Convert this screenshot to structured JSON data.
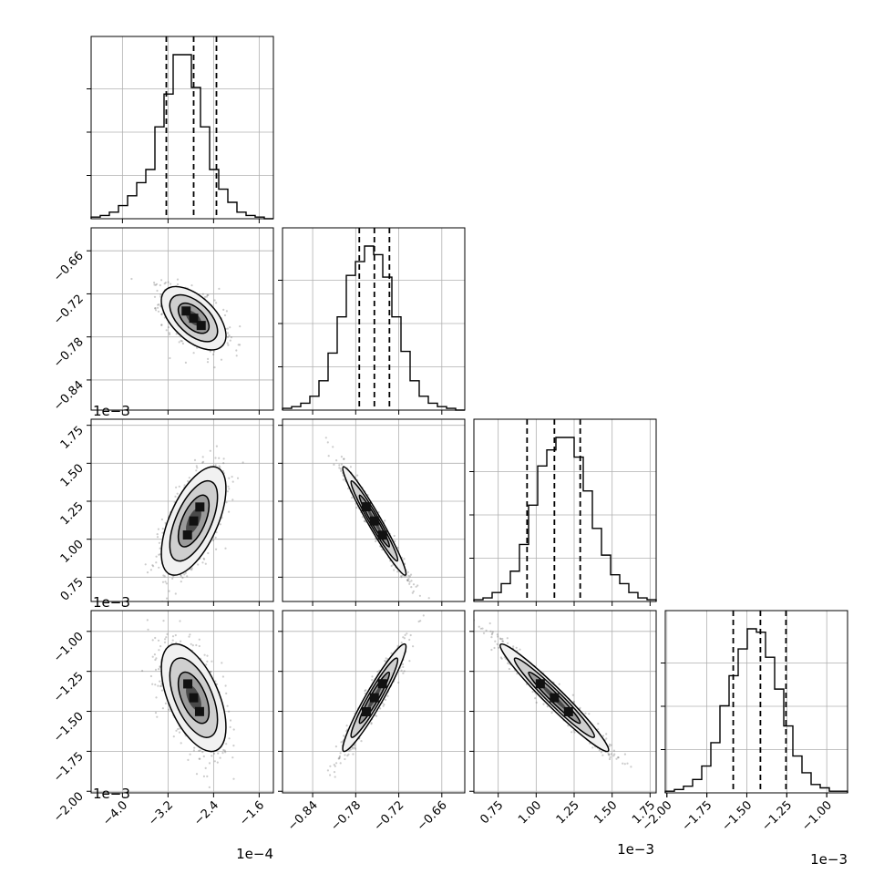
{
  "chart_data": {
    "type": "corner",
    "n_params": 4,
    "params": [
      {
        "ticks": [
          -4.0,
          -3.2,
          -2.4,
          -1.6
        ],
        "tick_labels": [
          "−4.0",
          "−3.2",
          "−2.4",
          "−1.6"
        ],
        "offset_label": "1e−4",
        "quantiles": [
          -3.23,
          -2.75,
          -2.35
        ],
        "range": [
          -4.55,
          -1.35
        ],
        "hist": [
          1,
          2,
          4,
          8,
          14,
          22,
          30,
          56,
          76,
          100,
          100,
          80,
          56,
          30,
          18,
          10,
          4,
          2,
          1,
          0
        ]
      },
      {
        "ticks": [
          -0.84,
          -0.78,
          -0.72,
          -0.66
        ],
        "tick_labels": [
          "−0.84",
          "−0.78",
          "−0.72",
          "−0.66"
        ],
        "offset_label": "1e−3",
        "quantiles": [
          -0.775,
          -0.754,
          -0.733
        ],
        "range": [
          -0.882,
          -0.628
        ],
        "hist": [
          1,
          2,
          4,
          8,
          17,
          33,
          54,
          78,
          86,
          95,
          90,
          77,
          54,
          34,
          17,
          8,
          4,
          2,
          1,
          0
        ]
      },
      {
        "ticks": [
          0.75,
          1.0,
          1.25,
          1.5,
          1.75
        ],
        "tick_labels": [
          "0.75",
          "1.00",
          "1.25",
          "1.50",
          "1.75"
        ],
        "offset_label": "1e−3",
        "quantiles": [
          0.94,
          1.12,
          1.29
        ],
        "range": [
          0.59,
          1.79
        ],
        "hist": [
          1,
          2,
          5,
          10,
          17,
          32,
          54,
          76,
          85,
          92,
          92,
          81,
          62,
          41,
          26,
          15,
          10,
          5,
          2,
          1
        ]
      },
      {
        "ticks": [
          -2.0,
          -1.75,
          -1.5,
          -1.25,
          -1.0
        ],
        "tick_labels": [
          "−2.00",
          "−1.75",
          "−1.50",
          "−1.25",
          "−1.00"
        ],
        "offset_label": "1e−3",
        "quantiles": [
          -1.585,
          -1.415,
          -1.255
        ],
        "range": [
          -2.01,
          -0.87
        ],
        "hist": [
          1,
          2,
          4,
          8,
          16,
          30,
          52,
          70,
          86,
          98,
          96,
          81,
          62,
          40,
          22,
          12,
          5,
          3,
          1,
          1
        ]
      }
    ],
    "pairs": [
      {
        "i": 1,
        "j": 0,
        "center": [
          -2.75,
          -0.754
        ],
        "sd": [
          0.27,
          0.021
        ],
        "rho": -0.55
      },
      {
        "i": 2,
        "j": 0,
        "center": [
          -2.75,
          1.12
        ],
        "sd": [
          0.27,
          0.17
        ],
        "rho": 0.6
      },
      {
        "i": 2,
        "j": 1,
        "center": [
          -0.754,
          1.12
        ],
        "sd": [
          0.021,
          0.17
        ],
        "rho": -0.97
      },
      {
        "i": 3,
        "j": 0,
        "center": [
          -2.75,
          -1.415
        ],
        "sd": [
          0.27,
          0.16
        ],
        "rho": -0.55
      },
      {
        "i": 3,
        "j": 1,
        "center": [
          -0.754,
          -1.415
        ],
        "sd": [
          0.021,
          0.16
        ],
        "rho": 0.95
      },
      {
        "i": 3,
        "j": 2,
        "center": [
          1.12,
          -1.415
        ],
        "sd": [
          0.17,
          0.16
        ],
        "rho": -0.97
      }
    ],
    "grid": true,
    "colors": {
      "line": "#000000",
      "grid": "#b0b0b0",
      "points": "#555555"
    }
  }
}
